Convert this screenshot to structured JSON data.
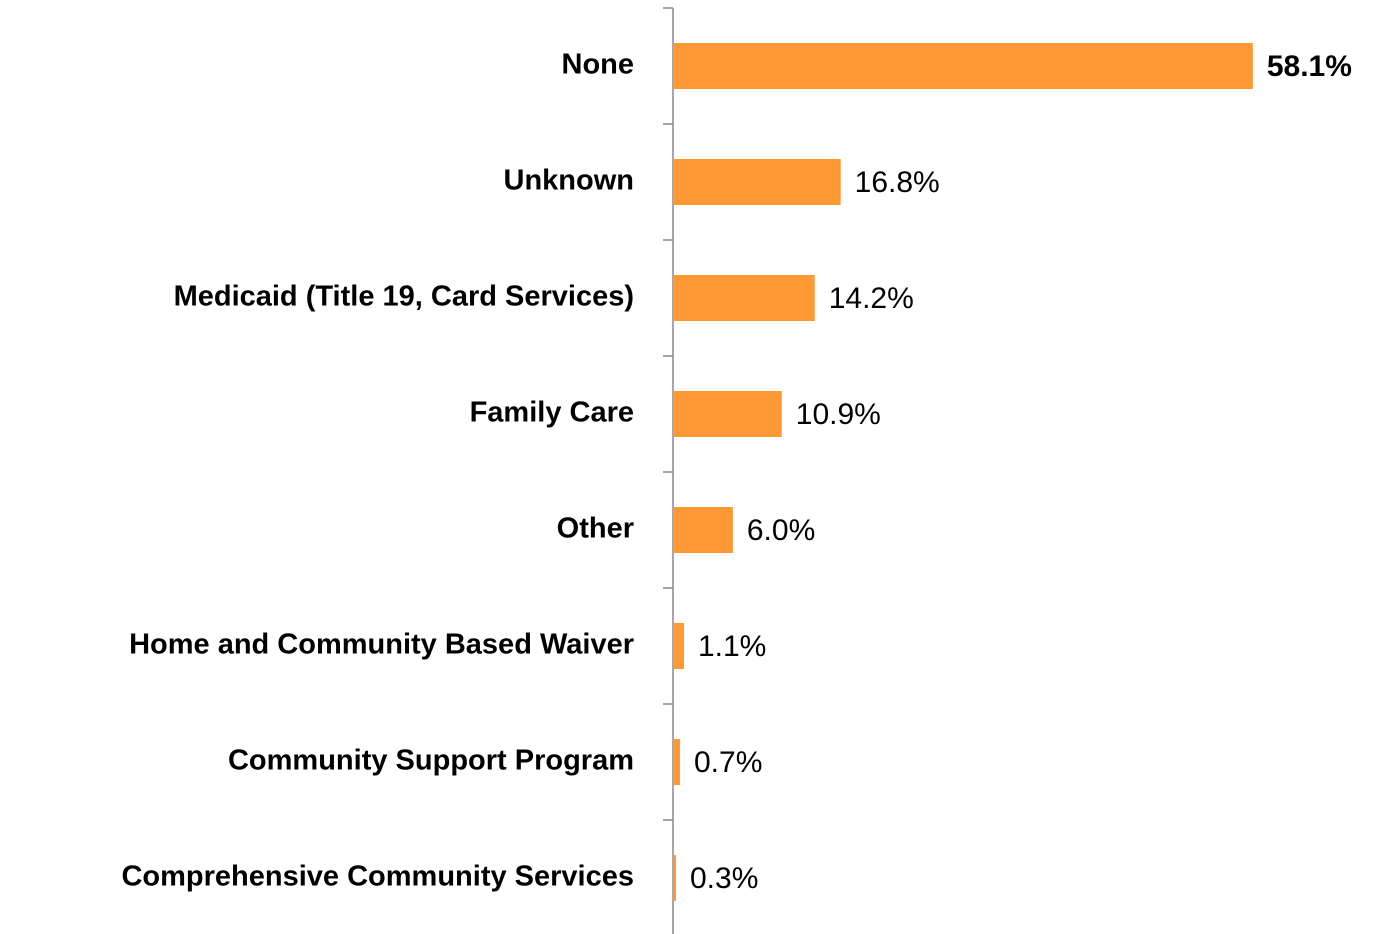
{
  "chart_data": {
    "type": "bar",
    "orientation": "horizontal",
    "categories": [
      "None",
      "Unknown",
      "Medicaid (Title 19, Card Services)",
      "Family Care",
      "Other",
      "Home and Community Based Waiver",
      "Community Support Program",
      "Comprehensive Community Services"
    ],
    "values": [
      58.1,
      16.8,
      14.2,
      10.9,
      6.0,
      1.1,
      0.7,
      0.3
    ],
    "value_labels": [
      "58.1%",
      "16.8%",
      "14.2%",
      "10.9%",
      "6.0%",
      "1.1%",
      "0.7%",
      "0.3%"
    ],
    "color": "#ff9933"
  }
}
